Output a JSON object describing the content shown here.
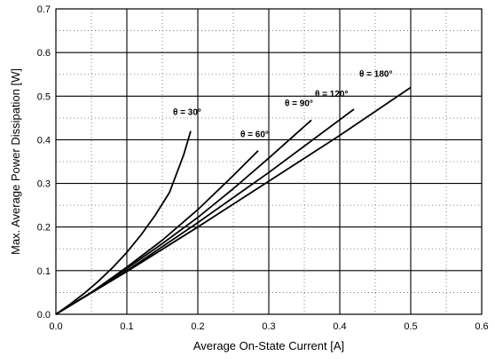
{
  "chart_data": {
    "type": "line",
    "title": "",
    "xlabel": "Average On-State Current [A]",
    "ylabel": "Max. Average Power Dissipation [W]",
    "xlim": [
      0,
      0.6
    ],
    "ylim": [
      0,
      0.7
    ],
    "x_ticks": [
      "0.0",
      "0.1",
      "0.2",
      "0.3",
      "0.4",
      "0.5",
      "0.6"
    ],
    "y_ticks": [
      "0.0",
      "0.1",
      "0.2",
      "0.3",
      "0.4",
      "0.5",
      "0.6",
      "0.7"
    ],
    "grid": {
      "major": true,
      "minor_dotted": true
    },
    "series": [
      {
        "name": "θ = 30°",
        "label_sup": "",
        "x": [
          0,
          0.02,
          0.04,
          0.06,
          0.08,
          0.1,
          0.12,
          0.14,
          0.16,
          0.18,
          0.19
        ],
        "y": [
          0,
          0.023,
          0.048,
          0.076,
          0.107,
          0.142,
          0.182,
          0.227,
          0.279,
          0.365,
          0.42
        ]
      },
      {
        "name": "θ = 60°",
        "label_sup": "",
        "x": [
          0,
          0.05,
          0.1,
          0.15,
          0.2,
          0.25,
          0.285
        ],
        "y": [
          0,
          0.05,
          0.108,
          0.17,
          0.24,
          0.318,
          0.375
        ]
      },
      {
        "name": "θ = 90°",
        "label_sup": "",
        "x": [
          0,
          0.05,
          0.1,
          0.15,
          0.2,
          0.25,
          0.3,
          0.36
        ],
        "y": [
          0,
          0.05,
          0.105,
          0.162,
          0.222,
          0.288,
          0.358,
          0.445
        ]
      },
      {
        "name": "θ = 120°",
        "label_sup": "",
        "x": [
          0,
          0.1,
          0.2,
          0.3,
          0.42
        ],
        "y": [
          0,
          0.1,
          0.21,
          0.325,
          0.47
        ]
      },
      {
        "name": "θ = 180°",
        "label_sup": "",
        "x": [
          0,
          0.1,
          0.2,
          0.3,
          0.4,
          0.5
        ],
        "y": [
          0,
          0.098,
          0.2,
          0.305,
          0.41,
          0.52
        ]
      }
    ],
    "series_labels": [
      "θ = 30°",
      "θ = 60°",
      "θ = 90°",
      "θ = 120°",
      "θ = 180°"
    ]
  }
}
